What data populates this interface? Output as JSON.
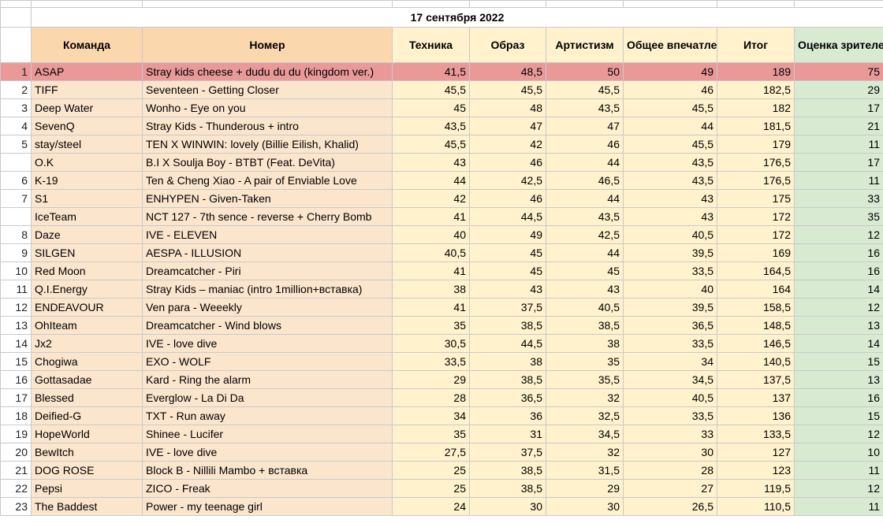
{
  "title": "17 сентября 2022",
  "headers": {
    "team": "Команда",
    "number": "Номер",
    "technique": "Техника",
    "image": "Образ",
    "artistry": "Артистизм",
    "overall": "Общее впечатление",
    "total": "Итог",
    "audience": "Оценка зрителей"
  },
  "rows": [
    {
      "rank": "1",
      "team": "ASAP",
      "number": "Stray kids  cheese + dudu du du (kingdom ver.)",
      "technique": "41,5",
      "image": "48,5",
      "artistry": "50",
      "overall": "49",
      "total": "189",
      "audience": "75"
    },
    {
      "rank": "2",
      "team": "TIFF",
      "number": "Seventeen - Getting Closer",
      "technique": "45,5",
      "image": "45,5",
      "artistry": "45,5",
      "overall": "46",
      "total": "182,5",
      "audience": "29"
    },
    {
      "rank": "3",
      "team": "Deep Water",
      "number": "Wonho - Eye on you",
      "technique": "45",
      "image": "48",
      "artistry": "43,5",
      "overall": "45,5",
      "total": "182",
      "audience": "17"
    },
    {
      "rank": "4",
      "team": "SevenQ",
      "number": "Stray Kids - Thunderous + intro",
      "technique": "43,5",
      "image": "47",
      "artistry": "47",
      "overall": "44",
      "total": "181,5",
      "audience": "21"
    },
    {
      "rank": "5",
      "team": "stay/steel",
      "number": "TEN X WINWIN: lovely (Billie Eilish, Khalid)",
      "technique": "45,5",
      "image": "42",
      "artistry": "46",
      "overall": "45,5",
      "total": "179",
      "audience": "11"
    },
    {
      "rank": "",
      "team": "O.K",
      "number": "B.I X Soulja Boy - BTBT (Feat. DeVita)",
      "technique": "43",
      "image": "46",
      "artistry": "44",
      "overall": "43,5",
      "total": "176,5",
      "audience": "17"
    },
    {
      "rank": "6",
      "team": "K-19",
      "number": "Ten & Cheng Xiao - A pair of Enviable Love",
      "technique": "44",
      "image": "42,5",
      "artistry": "46,5",
      "overall": "43,5",
      "total": "176,5",
      "audience": "11"
    },
    {
      "rank": "7",
      "team": "S1",
      "number": "ENHYPEN - Given-Taken",
      "technique": "42",
      "image": "46",
      "artistry": "44",
      "overall": "43",
      "total": "175",
      "audience": "33"
    },
    {
      "rank": "",
      "team": "IceTeam",
      "number": "NCT 127 - 7th sence - reverse + Cherry Bomb",
      "technique": "41",
      "image": "44,5",
      "artistry": "43,5",
      "overall": "43",
      "total": "172",
      "audience": "35"
    },
    {
      "rank": "8",
      "team": "Daze",
      "number": "IVE - ELEVEN",
      "technique": "40",
      "image": "49",
      "artistry": "42,5",
      "overall": "40,5",
      "total": "172",
      "audience": "12"
    },
    {
      "rank": "9",
      "team": "SILGEN",
      "number": "AESPA - ILLUSION",
      "technique": "40,5",
      "image": "45",
      "artistry": "44",
      "overall": "39,5",
      "total": "169",
      "audience": "16"
    },
    {
      "rank": "10",
      "team": "Red Moon",
      "number": "Dreamcatcher - Piri",
      "technique": "41",
      "image": "45",
      "artistry": "45",
      "overall": "33,5",
      "total": "164,5",
      "audience": "16"
    },
    {
      "rank": "11",
      "team": "Q.I.Energy",
      "number": "Stray Kids – maniac (intro 1million+вставка)",
      "technique": "38",
      "image": "43",
      "artistry": "43",
      "overall": "40",
      "total": "164",
      "audience": "14"
    },
    {
      "rank": "12",
      "team": "ENDEAVOUR",
      "number": "Ven para - Weeekly",
      "technique": "41",
      "image": "37,5",
      "artistry": "40,5",
      "overall": "39,5",
      "total": "158,5",
      "audience": "12"
    },
    {
      "rank": "13",
      "team": "OhIteam",
      "number": "Dreamcatcher - Wind blows",
      "technique": "35",
      "image": "38,5",
      "artistry": "38,5",
      "overall": "36,5",
      "total": "148,5",
      "audience": "13"
    },
    {
      "rank": "14",
      "team": "Jx2",
      "number": "IVE - love dive",
      "technique": "30,5",
      "image": "44,5",
      "artistry": "38",
      "overall": "33,5",
      "total": "146,5",
      "audience": "14"
    },
    {
      "rank": "15",
      "team": "Chogiwa",
      "number": "EXO - WOLF",
      "technique": "33,5",
      "image": "38",
      "artistry": "35",
      "overall": "34",
      "total": "140,5",
      "audience": "15"
    },
    {
      "rank": "16",
      "team": "Gottasadae",
      "number": "Kard - Ring the alarm",
      "technique": "29",
      "image": "38,5",
      "artistry": "35,5",
      "overall": "34,5",
      "total": "137,5",
      "audience": "13"
    },
    {
      "rank": "17",
      "team": "Blessed",
      "number": "Everglow - La Di Da",
      "technique": "28",
      "image": "36,5",
      "artistry": "32",
      "overall": "40,5",
      "total": "137",
      "audience": "16"
    },
    {
      "rank": "18",
      "team": "Deified-G",
      "number": "TXT - Run away",
      "technique": "34",
      "image": "36",
      "artistry": "32,5",
      "overall": "33,5",
      "total": "136",
      "audience": "15"
    },
    {
      "rank": "19",
      "team": "HopeWorld",
      "number": "Shinee - Lucifer",
      "technique": "35",
      "image": "31",
      "artistry": "34,5",
      "overall": "33",
      "total": "133,5",
      "audience": "12"
    },
    {
      "rank": "20",
      "team": "BewItch",
      "number": "IVE - love dive",
      "technique": "27,5",
      "image": "37,5",
      "artistry": "32",
      "overall": "30",
      "total": "127",
      "audience": "10"
    },
    {
      "rank": "21",
      "team": "DOG ROSE",
      "number": "Block B - Nillili Mambo + вставка",
      "technique": "25",
      "image": "38,5",
      "artistry": "31,5",
      "overall": "28",
      "total": "123",
      "audience": "11"
    },
    {
      "rank": "22",
      "team": "Pepsi",
      "number": "ZICO - Freak",
      "technique": "25",
      "image": "38,5",
      "artistry": "29",
      "overall": "27",
      "total": "119,5",
      "audience": "12"
    },
    {
      "rank": "23",
      "team": "The Baddest",
      "number": "Power - my teenage girl",
      "technique": "24",
      "image": "30",
      "artistry": "30",
      "overall": "26,5",
      "total": "110,5",
      "audience": "11"
    }
  ]
}
